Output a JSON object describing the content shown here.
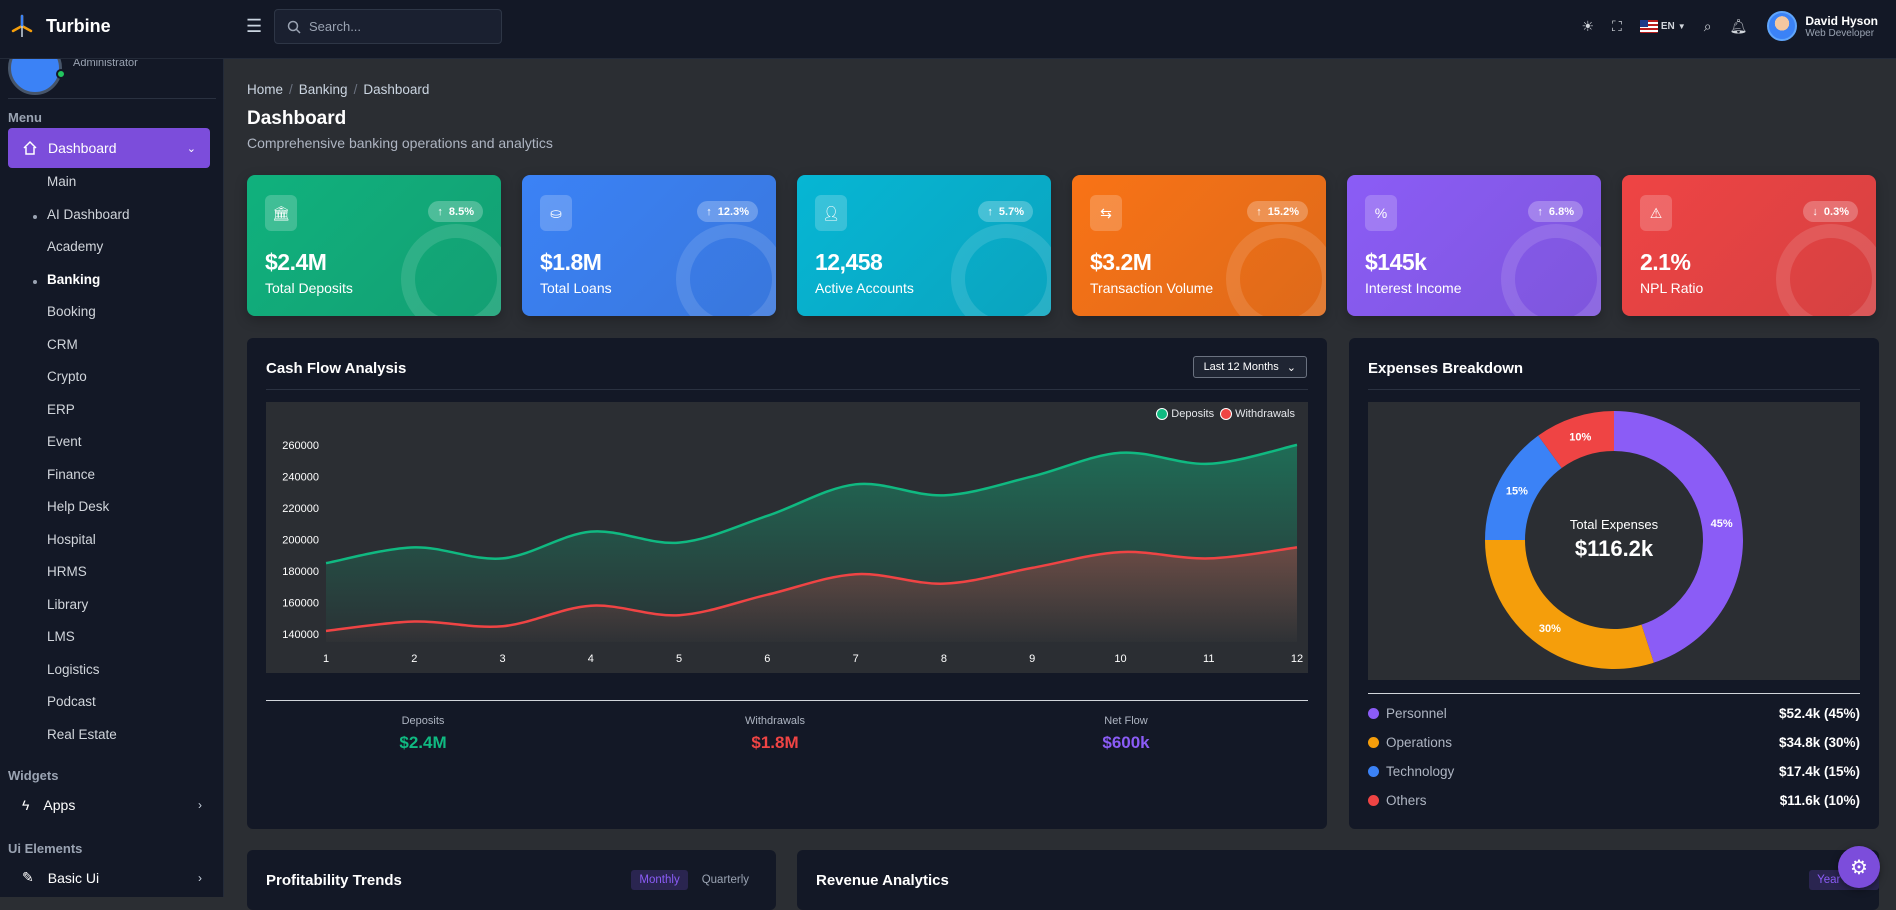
{
  "app": {
    "name": "Turbine"
  },
  "search": {
    "placeholder": "Search..."
  },
  "topbar": {
    "language": "EN",
    "user_name": "David Hyson",
    "user_role": "Web Developer"
  },
  "sidebar": {
    "user_role": "Administrator",
    "menu_title": "Menu",
    "active_item": "Dashboard",
    "items": [
      {
        "label": "Main",
        "bullet": false,
        "bold": false
      },
      {
        "label": "AI Dashboard",
        "bullet": true,
        "bold": false
      },
      {
        "label": "Academy",
        "bullet": false,
        "bold": false
      },
      {
        "label": "Banking",
        "bullet": true,
        "bold": true
      },
      {
        "label": "Booking",
        "bullet": false,
        "bold": false
      },
      {
        "label": "CRM",
        "bullet": false,
        "bold": false
      },
      {
        "label": "Crypto",
        "bullet": false,
        "bold": false
      },
      {
        "label": "ERP",
        "bullet": false,
        "bold": false
      },
      {
        "label": "Event",
        "bullet": false,
        "bold": false
      },
      {
        "label": "Finance",
        "bullet": false,
        "bold": false
      },
      {
        "label": "Help Desk",
        "bullet": false,
        "bold": false
      },
      {
        "label": "Hospital",
        "bullet": false,
        "bold": false
      },
      {
        "label": "HRMS",
        "bullet": false,
        "bold": false
      },
      {
        "label": "Library",
        "bullet": false,
        "bold": false
      },
      {
        "label": "LMS",
        "bullet": false,
        "bold": false
      },
      {
        "label": "Logistics",
        "bullet": false,
        "bold": false
      },
      {
        "label": "Podcast",
        "bullet": false,
        "bold": false
      },
      {
        "label": "Real Estate",
        "bullet": false,
        "bold": false
      }
    ],
    "widgets_title": "Widgets",
    "apps_label": "Apps",
    "ui_title": "Ui Elements",
    "basic_ui_label": "Basic Ui"
  },
  "page": {
    "breadcrumb": [
      "Home",
      "Banking",
      "Dashboard"
    ],
    "title": "Dashboard",
    "subtitle": "Comprehensive banking operations and analytics"
  },
  "stats": [
    {
      "value": "$2.4M",
      "label": "Total Deposits",
      "change": "8.5%",
      "direction": "up",
      "icon": "bank-icon",
      "color": "#10b17d"
    },
    {
      "value": "$1.8M",
      "label": "Total Loans",
      "change": "12.3%",
      "direction": "up",
      "icon": "hand-coins-icon",
      "color": "#3b82f6"
    },
    {
      "value": "12,458",
      "label": "Active Accounts",
      "change": "5.7%",
      "direction": "up",
      "icon": "user-icon",
      "color": "#06b6d4"
    },
    {
      "value": "$3.2M",
      "label": "Transaction Volume",
      "change": "15.2%",
      "direction": "up",
      "icon": "exchange-icon",
      "color": "#f97316"
    },
    {
      "value": "$145k",
      "label": "Interest Income",
      "change": "6.8%",
      "direction": "up",
      "icon": "percent-icon",
      "color": "#8b5cf6"
    },
    {
      "value": "2.1%",
      "label": "NPL Ratio",
      "change": "0.3%",
      "direction": "down",
      "icon": "warning-icon",
      "color": "#ef4444"
    }
  ],
  "cashflow": {
    "title": "Cash Flow Analysis",
    "period": "Last 12 Months",
    "summary": [
      {
        "label": "Deposits",
        "value": "$2.4M",
        "color": "#10b981"
      },
      {
        "label": "Withdrawals",
        "value": "$1.8M",
        "color": "#ef4444"
      },
      {
        "label": "Net Flow",
        "value": "$600k",
        "color": "#8b5cf6"
      }
    ]
  },
  "expenses": {
    "title": "Expenses Breakdown",
    "center_label": "Total Expenses",
    "center_value": "$116.2k",
    "rows": [
      {
        "name": "Personnel",
        "amount": "$52.4k (45%)",
        "color": "#8b5cf6"
      },
      {
        "name": "Operations",
        "amount": "$34.8k (30%)",
        "color": "#f59e0b"
      },
      {
        "name": "Technology",
        "amount": "$17.4k (15%)",
        "color": "#3b82f6"
      },
      {
        "name": "Others",
        "amount": "$11.6k (10%)",
        "color": "#ef4444"
      }
    ]
  },
  "profitability": {
    "title": "Profitability Trends",
    "tabs": [
      "Monthly",
      "Quarterly"
    ]
  },
  "revenue": {
    "title": "Revenue Analytics",
    "tab": "Year to Da"
  },
  "chart_data": [
    {
      "type": "area",
      "title": "",
      "x": [
        1,
        2,
        3,
        4,
        5,
        6,
        7,
        8,
        9,
        10,
        11,
        12
      ],
      "ylim": [
        135000,
        265000
      ],
      "yticks": [
        140000,
        160000,
        180000,
        200000,
        220000,
        240000,
        260000
      ],
      "legend": "top-right",
      "series": [
        {
          "name": "Deposits",
          "color": "#10b981",
          "values": [
            185000,
            195000,
            188000,
            205000,
            198000,
            215000,
            235000,
            228000,
            240000,
            255000,
            248000,
            260000
          ]
        },
        {
          "name": "Withdrawals",
          "color": "#ef4444",
          "values": [
            142000,
            148000,
            145000,
            158000,
            152000,
            165000,
            178000,
            172000,
            182000,
            192000,
            188000,
            195000
          ]
        }
      ]
    },
    {
      "type": "pie",
      "title": "",
      "labels": [
        "Personnel",
        "Operations",
        "Technology",
        "Others"
      ],
      "values": [
        45,
        30,
        15,
        10
      ],
      "colors": [
        "#8b5cf6",
        "#f59e0b",
        "#3b82f6",
        "#ef4444"
      ],
      "data_labels": [
        "45%",
        "30%",
        "15%",
        "10%"
      ]
    }
  ]
}
